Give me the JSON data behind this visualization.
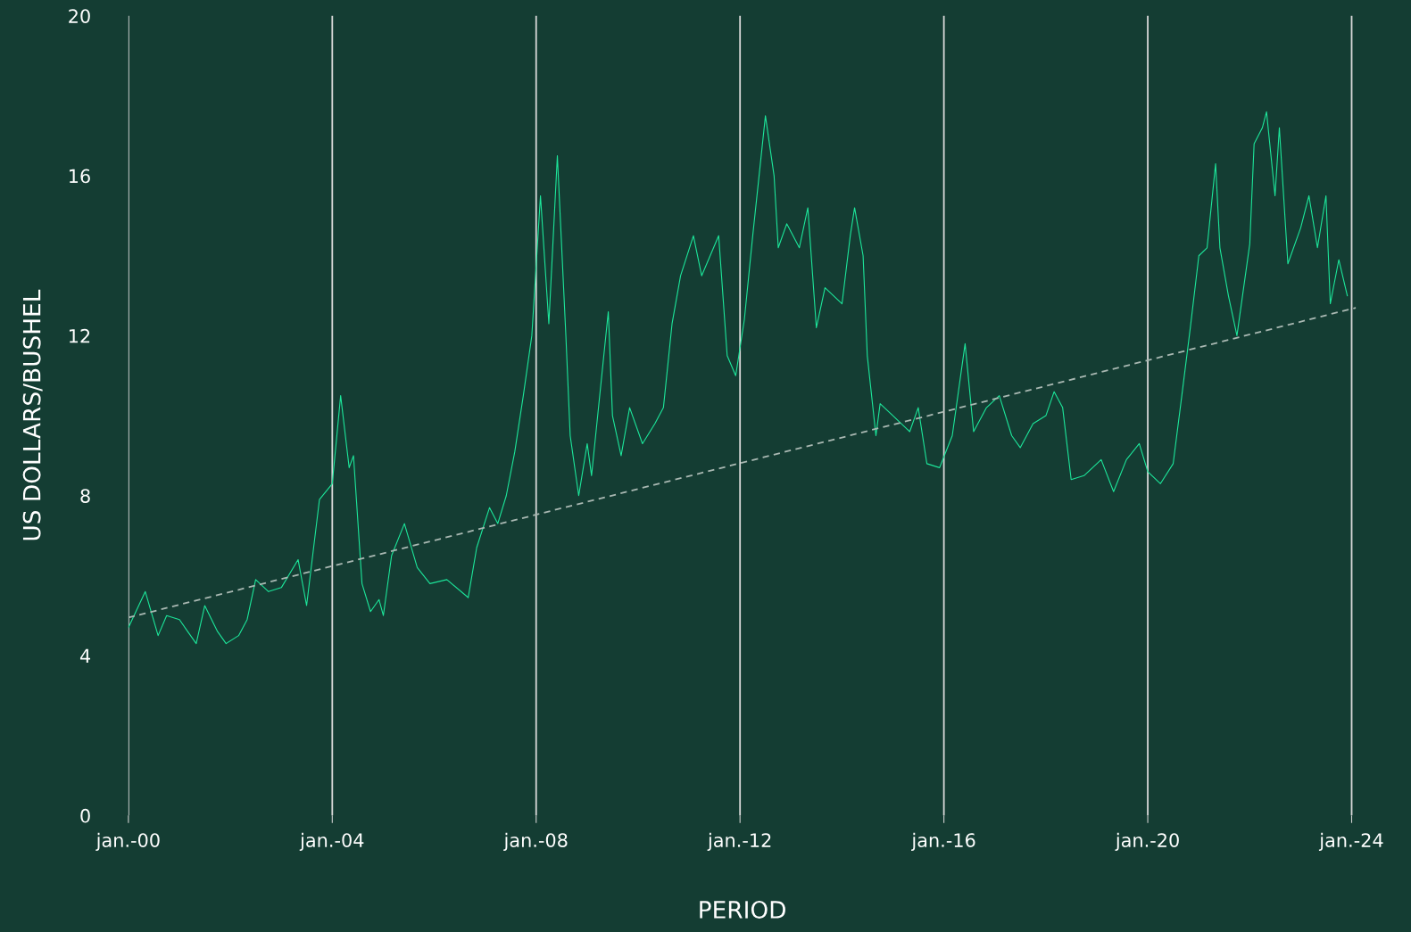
{
  "chart_data": {
    "type": "line",
    "xlabel": "PERIOD",
    "ylabel": "US DOLLARS/BUSHEL",
    "x": [
      "2000-01",
      "2000-05",
      "2000-08",
      "2000-10",
      "2001-01",
      "2001-03",
      "2001-05",
      "2001-07",
      "2001-10",
      "2001-12",
      "2002-03",
      "2002-05",
      "2002-07",
      "2002-10",
      "2003-01",
      "2003-05",
      "2003-07",
      "2003-10",
      "2004-01",
      "2004-03",
      "2004-05",
      "2004-06",
      "2004-08",
      "2004-10",
      "2004-12",
      "2005-01",
      "2005-03",
      "2005-06",
      "2005-09",
      "2005-12",
      "2006-04",
      "2006-09",
      "2006-11",
      "2007-02",
      "2007-04",
      "2007-06",
      "2007-08",
      "2007-10",
      "2007-12",
      "2008-02",
      "2008-04",
      "2008-06",
      "2008-08",
      "2008-09",
      "2008-11",
      "2009-01",
      "2009-02",
      "2009-06",
      "2009-07",
      "2009-09",
      "2009-11",
      "2010-02",
      "2010-05",
      "2010-07",
      "2010-09",
      "2010-11",
      "2011-02",
      "2011-04",
      "2011-06",
      "2011-08",
      "2011-10",
      "2011-12",
      "2012-02",
      "2012-04",
      "2012-07",
      "2012-09",
      "2012-10",
      "2012-12",
      "2013-03",
      "2013-05",
      "2013-07",
      "2013-09",
      "2014-01",
      "2014-03",
      "2014-04",
      "2014-06",
      "2014-07",
      "2014-09",
      "2014-10",
      "2015-01",
      "2015-05",
      "2015-07",
      "2015-09",
      "2015-12",
      "2016-03",
      "2016-06",
      "2016-08",
      "2016-11",
      "2017-02",
      "2017-05",
      "2017-07",
      "2017-10",
      "2018-01",
      "2018-03",
      "2018-05",
      "2018-07",
      "2018-10",
      "2019-02",
      "2019-05",
      "2019-08",
      "2019-11",
      "2020-01",
      "2020-04",
      "2020-07",
      "2020-09",
      "2020-11",
      "2021-01",
      "2021-03",
      "2021-05",
      "2021-06",
      "2021-08",
      "2021-10",
      "2022-01",
      "2022-02",
      "2022-04",
      "2022-05",
      "2022-07",
      "2022-08",
      "2022-10",
      "2023-01",
      "2023-03",
      "2023-05",
      "2023-07",
      "2023-08",
      "2023-10",
      "2023-12"
    ],
    "series": [
      {
        "color": "#1de59a",
        "line_style": "solid",
        "values": [
          4.7,
          5.6,
          4.5,
          5.0,
          4.9,
          4.6,
          4.3,
          5.25,
          4.6,
          4.3,
          4.5,
          4.9,
          5.9,
          5.6,
          5.7,
          6.4,
          5.25,
          7.9,
          8.3,
          10.5,
          8.7,
          9.0,
          5.8,
          5.1,
          5.4,
          5.0,
          6.5,
          7.3,
          6.2,
          5.8,
          5.9,
          5.45,
          6.7,
          7.7,
          7.3,
          8.0,
          9.1,
          10.5,
          12.0,
          15.5,
          12.3,
          16.5,
          12.0,
          9.5,
          8.0,
          9.3,
          8.5,
          12.6,
          10.0,
          9.0,
          10.2,
          9.3,
          9.8,
          10.2,
          12.3,
          13.5,
          14.5,
          13.5,
          14.0,
          14.5,
          11.5,
          11.0,
          12.4,
          14.5,
          17.5,
          16.0,
          14.2,
          14.8,
          14.2,
          15.2,
          12.2,
          13.2,
          12.8,
          14.5,
          15.2,
          14.0,
          11.5,
          9.5,
          10.3,
          10.0,
          9.6,
          10.2,
          8.8,
          8.7,
          9.5,
          11.8,
          9.6,
          10.2,
          10.5,
          9.5,
          9.2,
          9.8,
          10.0,
          10.6,
          10.2,
          8.4,
          8.5,
          8.9,
          8.1,
          8.9,
          9.3,
          8.6,
          8.3,
          8.8,
          10.5,
          12.2,
          14.0,
          14.2,
          16.3,
          14.2,
          13.0,
          12.0,
          14.3,
          16.8,
          17.2,
          17.6,
          15.5,
          17.2,
          13.8,
          14.7,
          15.5,
          14.2,
          15.5,
          12.8,
          13.9,
          13.0
        ]
      },
      {
        "color": "#a9b8b2",
        "line_style": "dashed",
        "x": [
          "2000-01",
          "2024-02"
        ],
        "values": [
          4.95,
          12.7
        ]
      }
    ],
    "xlim": [
      "2000-01",
      "2024-02"
    ],
    "xticks": [
      {
        "value": "2000-01",
        "label": "jan.-00"
      },
      {
        "value": "2004-01",
        "label": "jan.-04"
      },
      {
        "value": "2008-01",
        "label": "jan.-08"
      },
      {
        "value": "2012-01",
        "label": "jan.-12"
      },
      {
        "value": "2016-01",
        "label": "jan.-16"
      },
      {
        "value": "2020-01",
        "label": "jan.-20"
      },
      {
        "value": "2024-01",
        "label": "jan.-24"
      }
    ],
    "ylim": [
      0,
      20
    ],
    "yticks": [
      0,
      4,
      8,
      12,
      16,
      20
    ],
    "grid": "x",
    "legend": false
  }
}
